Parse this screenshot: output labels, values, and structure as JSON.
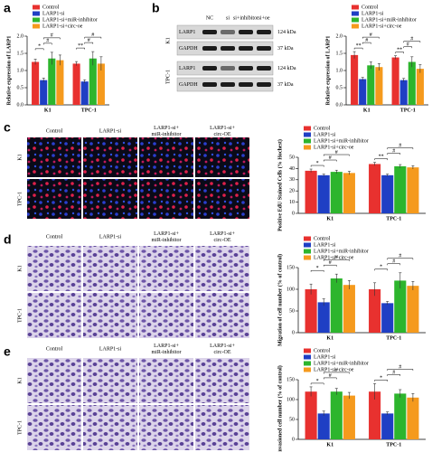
{
  "panel_labels": [
    "a",
    "b",
    "c",
    "d",
    "e"
  ],
  "blot": {
    "columns": [
      "NC",
      "si",
      "si+inhibitor",
      "si+oe"
    ],
    "rows": [
      "LARP1",
      "GAPDH",
      "LARP1",
      "GAPDH"
    ],
    "sizes": [
      "124 kDa",
      "37 kDa",
      "124 kDa",
      "37 kDa"
    ],
    "groups": [
      "K1",
      "TPC-1"
    ]
  },
  "images_c": {
    "columns": [
      [
        "Control"
      ],
      [
        "LARP1-si"
      ],
      [
        "LARP1-si+",
        "miR-inhibitor"
      ],
      [
        "LARP1-si+",
        "circ-OE"
      ]
    ],
    "rows": [
      "K1",
      "TPC-1"
    ]
  },
  "images_d": {
    "columns": [
      [
        "Control"
      ],
      [
        "LARP1-si"
      ],
      [
        "LARP1-si+",
        "miR-inhibitor"
      ],
      [
        "LARP1-si+",
        "circ-OE"
      ]
    ],
    "rows": [
      "K1",
      "TPC-1"
    ]
  },
  "images_e": {
    "columns": [
      [
        "Control"
      ],
      [
        "LARP1-si"
      ],
      [
        "LARP1-si+",
        "miR-inhibitor"
      ],
      [
        "LARP1-si+",
        "circ-OE"
      ]
    ],
    "rows": [
      "K1",
      "TPC-1"
    ]
  },
  "chart_data": [
    {
      "type": "bar",
      "y_label": "Relative expression of LARP1",
      "categories": [
        "K1",
        "TPC-1"
      ],
      "ylim": [
        0,
        2
      ],
      "yticks": [
        {
          "value": 0,
          "label": "0.0"
        },
        0.5,
        {
          "value": 1,
          "label": "1.0"
        },
        1.5,
        {
          "value": 2,
          "label": "2.0"
        }
      ],
      "series": [
        {
          "name": "Control",
          "color": "#e8312f",
          "values": [
            1.25,
            1.2
          ],
          "errors": [
            0.08,
            0.06
          ]
        },
        {
          "name": "LARP1-si",
          "color": "#1f3fc4",
          "values": [
            0.72,
            0.68
          ],
          "errors": [
            0.06,
            0.05
          ]
        },
        {
          "name": "LARP1-si+miR-inhibitor",
          "color": "#2db52d",
          "values": [
            1.35,
            1.35
          ],
          "errors": [
            0.18,
            0.2
          ]
        },
        {
          "name": "LARP1-si+circ-oe",
          "color": "#f59a1d",
          "values": [
            1.3,
            1.2
          ],
          "errors": [
            0.15,
            0.2
          ]
        }
      ],
      "significance": [
        [
          "*",
          "#",
          "#"
        ],
        [
          "**",
          "#",
          "#"
        ]
      ]
    },
    {
      "type": "bar",
      "y_label": "Relative expression of LARP1",
      "categories": [
        "K1",
        "TPC-1"
      ],
      "ylim": [
        0,
        2
      ],
      "yticks": [
        {
          "value": 0,
          "label": "0.0"
        },
        0.5,
        {
          "value": 1,
          "label": "1.0"
        },
        1.5,
        {
          "value": 2,
          "label": "2.0"
        }
      ],
      "series": [
        {
          "name": "Control",
          "color": "#e8312f",
          "values": [
            1.45,
            1.38
          ],
          "errors": [
            0.1,
            0.05
          ]
        },
        {
          "name": "LARP1-si",
          "color": "#1f3fc4",
          "values": [
            0.75,
            0.72
          ],
          "errors": [
            0.05,
            0.05
          ]
        },
        {
          "name": "LARP1-si+miR-inhibitor",
          "color": "#2db52d",
          "values": [
            1.15,
            1.25
          ],
          "errors": [
            0.1,
            0.15
          ]
        },
        {
          "name": "LARP1-si+circ-oe",
          "color": "#f59a1d",
          "values": [
            1.1,
            1.05
          ],
          "errors": [
            0.1,
            0.12
          ]
        }
      ],
      "significance": [
        [
          "**",
          "#",
          "#"
        ],
        [
          "**",
          "#",
          "#"
        ]
      ]
    },
    {
      "type": "bar",
      "y_label": "Positive EdU Stained Cells (% Hochest)",
      "categories": [
        "K1",
        "TPC-1"
      ],
      "ylim": [
        0,
        50
      ],
      "yticks": [
        0,
        10,
        20,
        30,
        40,
        50
      ],
      "series": [
        {
          "name": "Control",
          "color": "#e8312f",
          "values": [
            38,
            44
          ],
          "errors": [
            1.5,
            1.5
          ]
        },
        {
          "name": "LARP1-si",
          "color": "#1f3fc4",
          "values": [
            34,
            34
          ],
          "errors": [
            1,
            1
          ]
        },
        {
          "name": "LARP1-si+miR-inhibitor",
          "color": "#2db52d",
          "values": [
            37,
            42
          ],
          "errors": [
            1.5,
            1.5
          ]
        },
        {
          "name": "LARP1-si+circ-oe",
          "color": "#f59a1d",
          "values": [
            36,
            41
          ],
          "errors": [
            1.5,
            1.5
          ]
        }
      ],
      "significance": [
        [
          "*",
          "#",
          "#"
        ],
        [
          "**",
          "#",
          "#"
        ]
      ]
    },
    {
      "type": "bar",
      "y_label": "Migration of cell number (% of control)",
      "categories": [
        "K1",
        "TPC-1"
      ],
      "ylim": [
        0,
        150
      ],
      "yticks": [
        0,
        50,
        100,
        150
      ],
      "series": [
        {
          "name": "Control",
          "color": "#e8312f",
          "values": [
            100,
            100
          ],
          "errors": [
            12,
            15
          ]
        },
        {
          "name": "LARP1-si",
          "color": "#1f3fc4",
          "values": [
            70,
            68
          ],
          "errors": [
            8,
            4
          ]
        },
        {
          "name": "LARP1-si+miR-inhibitor",
          "color": "#2db52d",
          "values": [
            125,
            120
          ],
          "errors": [
            10,
            18
          ]
        },
        {
          "name": "LARP1-si+circ-oe",
          "color": "#f59a1d",
          "values": [
            110,
            108
          ],
          "errors": [
            10,
            10
          ]
        }
      ],
      "significance": [
        [
          "*",
          "#",
          "#"
        ],
        [
          "*",
          "#",
          "#"
        ]
      ]
    },
    {
      "type": "bar",
      "y_label": "Invasioned cell number (% of control)",
      "categories": [
        "K1",
        "TPC-1"
      ],
      "ylim": [
        0,
        150
      ],
      "yticks": [
        0,
        50,
        100,
        150
      ],
      "series": [
        {
          "name": "Control",
          "color": "#e8312f",
          "values": [
            120,
            120
          ],
          "errors": [
            12,
            20
          ]
        },
        {
          "name": "LARP1-si",
          "color": "#1f3fc4",
          "values": [
            65,
            65
          ],
          "errors": [
            6,
            4
          ]
        },
        {
          "name": "LARP1-si+miR-inhibitor",
          "color": "#2db52d",
          "values": [
            120,
            115
          ],
          "errors": [
            8,
            10
          ]
        },
        {
          "name": "LARP1-si+circ-oe",
          "color": "#f59a1d",
          "values": [
            110,
            105
          ],
          "errors": [
            8,
            10
          ]
        }
      ],
      "significance": [
        [
          "*",
          "#",
          "#"
        ],
        [
          "*",
          "#",
          "#"
        ]
      ]
    }
  ]
}
